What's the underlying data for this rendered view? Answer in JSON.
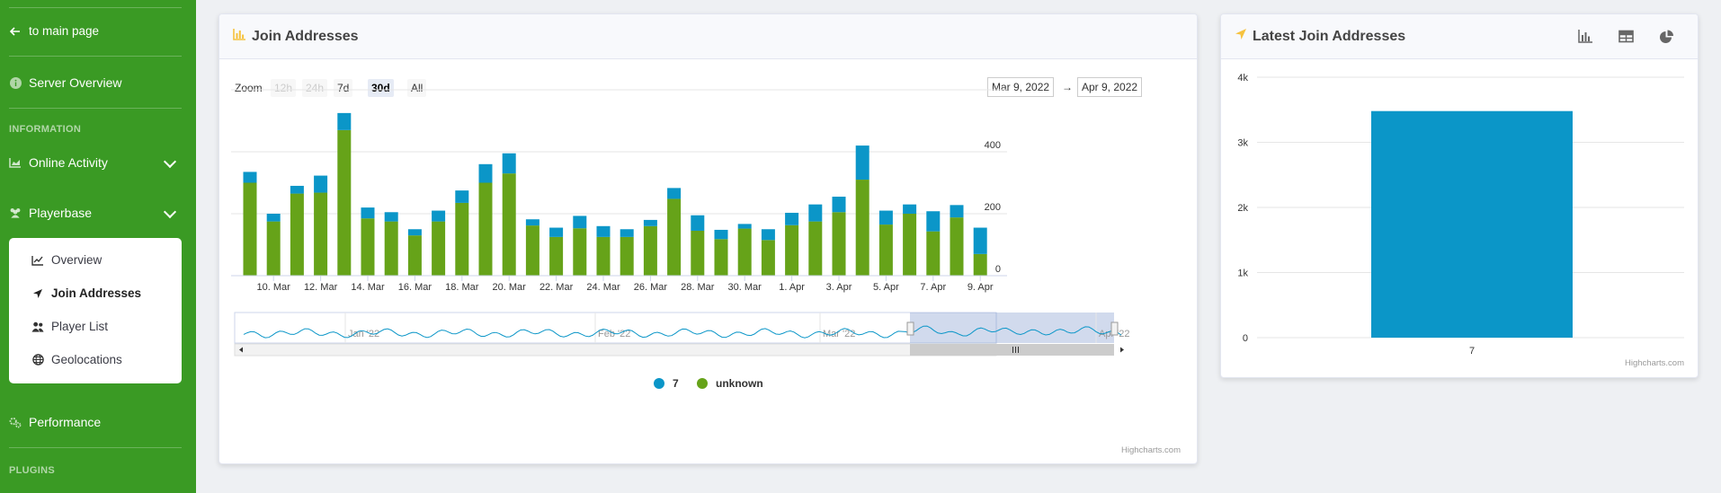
{
  "sidebar": {
    "main_link": "to main page",
    "server_overview": "Server Overview",
    "section_information": "INFORMATION",
    "online_activity": "Online Activity",
    "playerbase": "Playerbase",
    "sub_items": [
      "Overview",
      "Join Addresses",
      "Player List",
      "Geolocations"
    ],
    "performance": "Performance",
    "section_plugins": "PLUGINS"
  },
  "join_card": {
    "title": "Join Addresses",
    "zoom_label": "Zoom",
    "zoom_buttons": [
      "12h",
      "24h",
      "7d",
      "30d",
      "All"
    ],
    "date_from": "Mar 9, 2022",
    "date_arrow": "→",
    "date_to": "Apr 9, 2022",
    "credits": "Highcharts.com"
  },
  "latest_card": {
    "title": "Latest Join Addresses",
    "icons": [
      "bar-chart-icon",
      "table-icon",
      "pie-chart-icon"
    ],
    "credits": "Highcharts.com"
  },
  "colors": {
    "sidebar": "#3a9a24",
    "series_7": "#0b96c8",
    "series_unknown": "#66a319"
  },
  "chart_data": [
    {
      "type": "bar",
      "stacked": true,
      "title": "Join Addresses",
      "x_tick_labels": [
        "10. Mar",
        "12. Mar",
        "14. Mar",
        "16. Mar",
        "18. Mar",
        "20. Mar",
        "22. Mar",
        "24. Mar",
        "26. Mar",
        "28. Mar",
        "30. Mar",
        "1. Apr",
        "3. Apr",
        "5. Apr",
        "7. Apr",
        "9. Apr"
      ],
      "y_ticks": [
        0,
        200,
        400
      ],
      "ylim": [
        0,
        600
      ],
      "series": [
        {
          "name": "7",
          "values": [
            35,
            25,
            25,
            55,
            55,
            35,
            30,
            20,
            35,
            40,
            60,
            65,
            20,
            30,
            40,
            35,
            25,
            20,
            35,
            50,
            30,
            15,
            35,
            40,
            55,
            50,
            110,
            45,
            30,
            65,
            40,
            85
          ]
        },
        {
          "name": "unknown",
          "values": [
            300,
            175,
            265,
            268,
            470,
            185,
            175,
            130,
            175,
            235,
            300,
            330,
            162,
            125,
            153,
            125,
            125,
            160,
            248,
            145,
            118,
            152,
            115,
            163,
            175,
            205,
            310,
            165,
            200,
            143,
            188,
            70
          ]
        }
      ],
      "legend": [
        "7",
        "unknown"
      ],
      "legend_position": "bottom-center",
      "navigator_labels": [
        "Jan '22",
        "Feb '22",
        "Mar '22",
        "Apr '22"
      ]
    },
    {
      "type": "bar",
      "categories": [
        "7"
      ],
      "values": [
        3480
      ],
      "y_ticks": [
        "0",
        "1k",
        "2k",
        "3k",
        "4k"
      ],
      "ylim": [
        0,
        4000
      ]
    }
  ]
}
